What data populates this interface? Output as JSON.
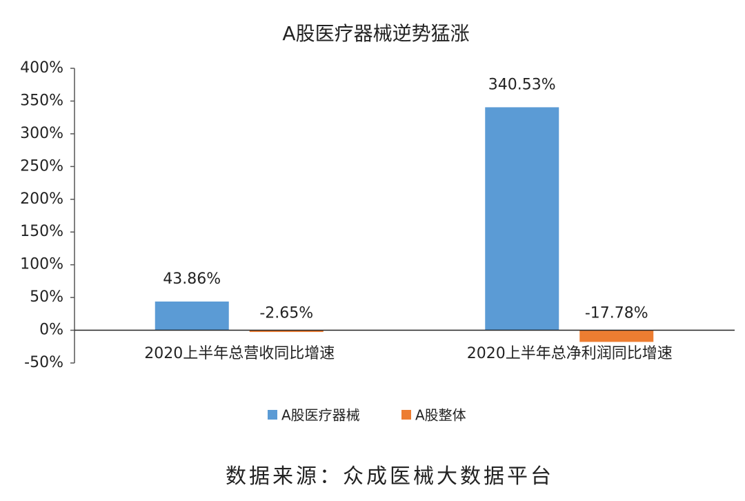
{
  "chart_data": {
    "type": "bar",
    "title": "A股医疗器械逆势猛涨",
    "categories": [
      "2020上半年总营收同比增速",
      "2020上半年总净利润同比增速"
    ],
    "series": [
      {
        "name": "A股医疗器械",
        "color": "#5b9bd5",
        "values": [
          43.86,
          340.53
        ],
        "value_labels": [
          "43.86%",
          "340.53%"
        ]
      },
      {
        "name": "A股整体",
        "color": "#ed7d31",
        "values": [
          -2.65,
          -17.78
        ],
        "value_labels": [
          "-2.65%",
          "-17.78%"
        ]
      }
    ],
    "ylim": [
      -50,
      400
    ],
    "yticks": [
      {
        "value": -50,
        "label": "-50%"
      },
      {
        "value": 0,
        "label": "0%"
      },
      {
        "value": 50,
        "label": "50%"
      },
      {
        "value": 100,
        "label": "100%"
      },
      {
        "value": 150,
        "label": "150%"
      },
      {
        "value": 200,
        "label": "200%"
      },
      {
        "value": 250,
        "label": "250%"
      },
      {
        "value": 300,
        "label": "300%"
      },
      {
        "value": 350,
        "label": "350%"
      },
      {
        "value": 400,
        "label": "400%"
      }
    ],
    "grid": false,
    "legend": "bottom",
    "source": "数据来源：众成医械大数据平台"
  }
}
